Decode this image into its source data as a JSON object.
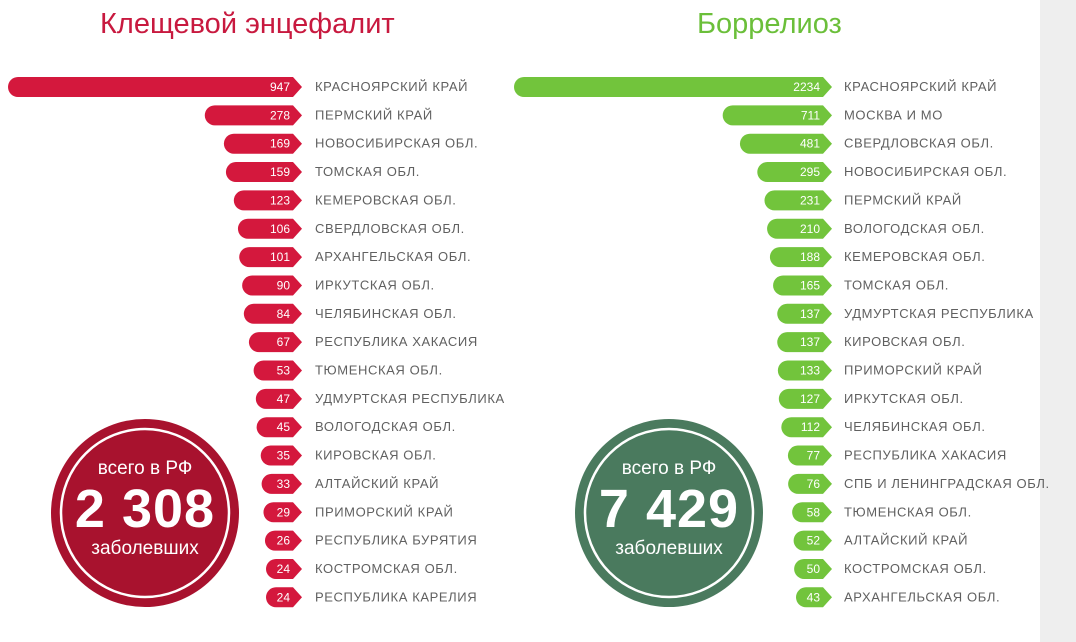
{
  "chart_data": [
    {
      "type": "bar",
      "title": "Клещевой энцефалит",
      "color": "#d4183d",
      "circle_color": "#a8122e",
      "categories": [
        "КРАСНОЯРСКИЙ КРАЙ",
        "ПЕРМСКИЙ КРАЙ",
        "НОВОСИБИРСКАЯ ОБЛ.",
        "ТОМСКАЯ ОБЛ.",
        "КЕМЕРОВСКАЯ ОБЛ.",
        "СВЕРДЛОВСКАЯ ОБЛ.",
        "АРХАНГЕЛЬСКАЯ ОБЛ.",
        "ИРКУТСКАЯ ОБЛ.",
        "ЧЕЛЯБИНСКАЯ ОБЛ.",
        "РЕСПУБЛИКА ХАКАСИЯ",
        "ТЮМЕНСКАЯ ОБЛ.",
        "УДМУРТСКАЯ РЕСПУБЛИКА",
        "ВОЛОГОДСКАЯ ОБЛ.",
        "КИРОВСКАЯ ОБЛ.",
        "АЛТАЙСКИЙ КРАЙ",
        "ПРИМОРСКИЙ КРАЙ",
        "РЕСПУБЛИКА БУРЯТИЯ",
        "КОСТРОМСКАЯ ОБЛ.",
        "РЕСПУБЛИКА КАРЕЛИЯ"
      ],
      "values": [
        947,
        278,
        169,
        159,
        123,
        106,
        101,
        90,
        84,
        67,
        53,
        47,
        45,
        35,
        33,
        29,
        26,
        24,
        24
      ],
      "total": {
        "top": "всего в РФ",
        "value": "2 308",
        "bottom": "заболевших"
      }
    },
    {
      "type": "bar",
      "title": "Боррелиоз",
      "color": "#72c43c",
      "circle_color": "#4a7a5e",
      "categories": [
        "КРАСНОЯРСКИЙ КРАЙ",
        "МОСКВА И МО",
        "СВЕРДЛОВСКАЯ ОБЛ.",
        "НОВОСИБИРСКАЯ ОБЛ.",
        "ПЕРМСКИЙ КРАЙ",
        "ВОЛОГОДСКАЯ ОБЛ.",
        "КЕМЕРОВСКАЯ ОБЛ.",
        "ТОМСКАЯ ОБЛ.",
        "УДМУРТСКАЯ РЕСПУБЛИКА",
        "КИРОВСКАЯ ОБЛ.",
        "ПРИМОРСКИЙ КРАЙ",
        "ИРКУТСКАЯ ОБЛ.",
        "ЧЕЛЯБИНСКАЯ ОБЛ.",
        "РЕСПУБЛИКА ХАКАСИЯ",
        "СПБ И ЛЕНИНГРАДСКАЯ ОБЛ.",
        "ТЮМЕНСКАЯ ОБЛ.",
        "АЛТАЙСКИЙ КРАЙ",
        "КОСТРОМСКАЯ ОБЛ.",
        "АРХАНГЕЛЬСКАЯ ОБЛ."
      ],
      "values": [
        2234,
        711,
        481,
        295,
        231,
        210,
        188,
        165,
        137,
        137,
        133,
        127,
        112,
        77,
        76,
        58,
        52,
        50,
        43
      ],
      "total": {
        "top": "всего в РФ",
        "value": "7 429",
        "bottom": "заболевших"
      }
    }
  ]
}
